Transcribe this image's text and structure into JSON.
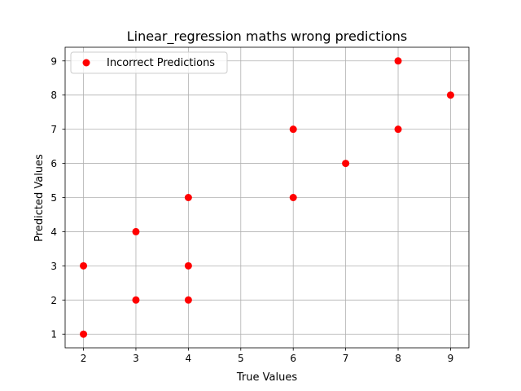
{
  "chart_data": {
    "type": "scatter",
    "title": "Linear_regression maths wrong predictions",
    "xlabel": "True Values",
    "ylabel": "Predicted Values",
    "xlim": [
      1.65,
      9.35
    ],
    "ylim": [
      0.6,
      9.4
    ],
    "xticks": [
      2,
      3,
      4,
      5,
      6,
      7,
      8,
      9
    ],
    "yticks": [
      1,
      2,
      3,
      4,
      5,
      6,
      7,
      8,
      9
    ],
    "grid": true,
    "legend_position": "upper-left",
    "series": [
      {
        "name": "Incorrect Predictions",
        "color": "#ff0000",
        "points": [
          {
            "x": 2,
            "y": 1
          },
          {
            "x": 2,
            "y": 3
          },
          {
            "x": 3,
            "y": 2
          },
          {
            "x": 3,
            "y": 4
          },
          {
            "x": 4,
            "y": 2
          },
          {
            "x": 4,
            "y": 3
          },
          {
            "x": 4,
            "y": 5
          },
          {
            "x": 6,
            "y": 5
          },
          {
            "x": 6,
            "y": 7
          },
          {
            "x": 7,
            "y": 6
          },
          {
            "x": 8,
            "y": 7
          },
          {
            "x": 8,
            "y": 9
          },
          {
            "x": 9,
            "y": 8
          }
        ]
      }
    ]
  }
}
